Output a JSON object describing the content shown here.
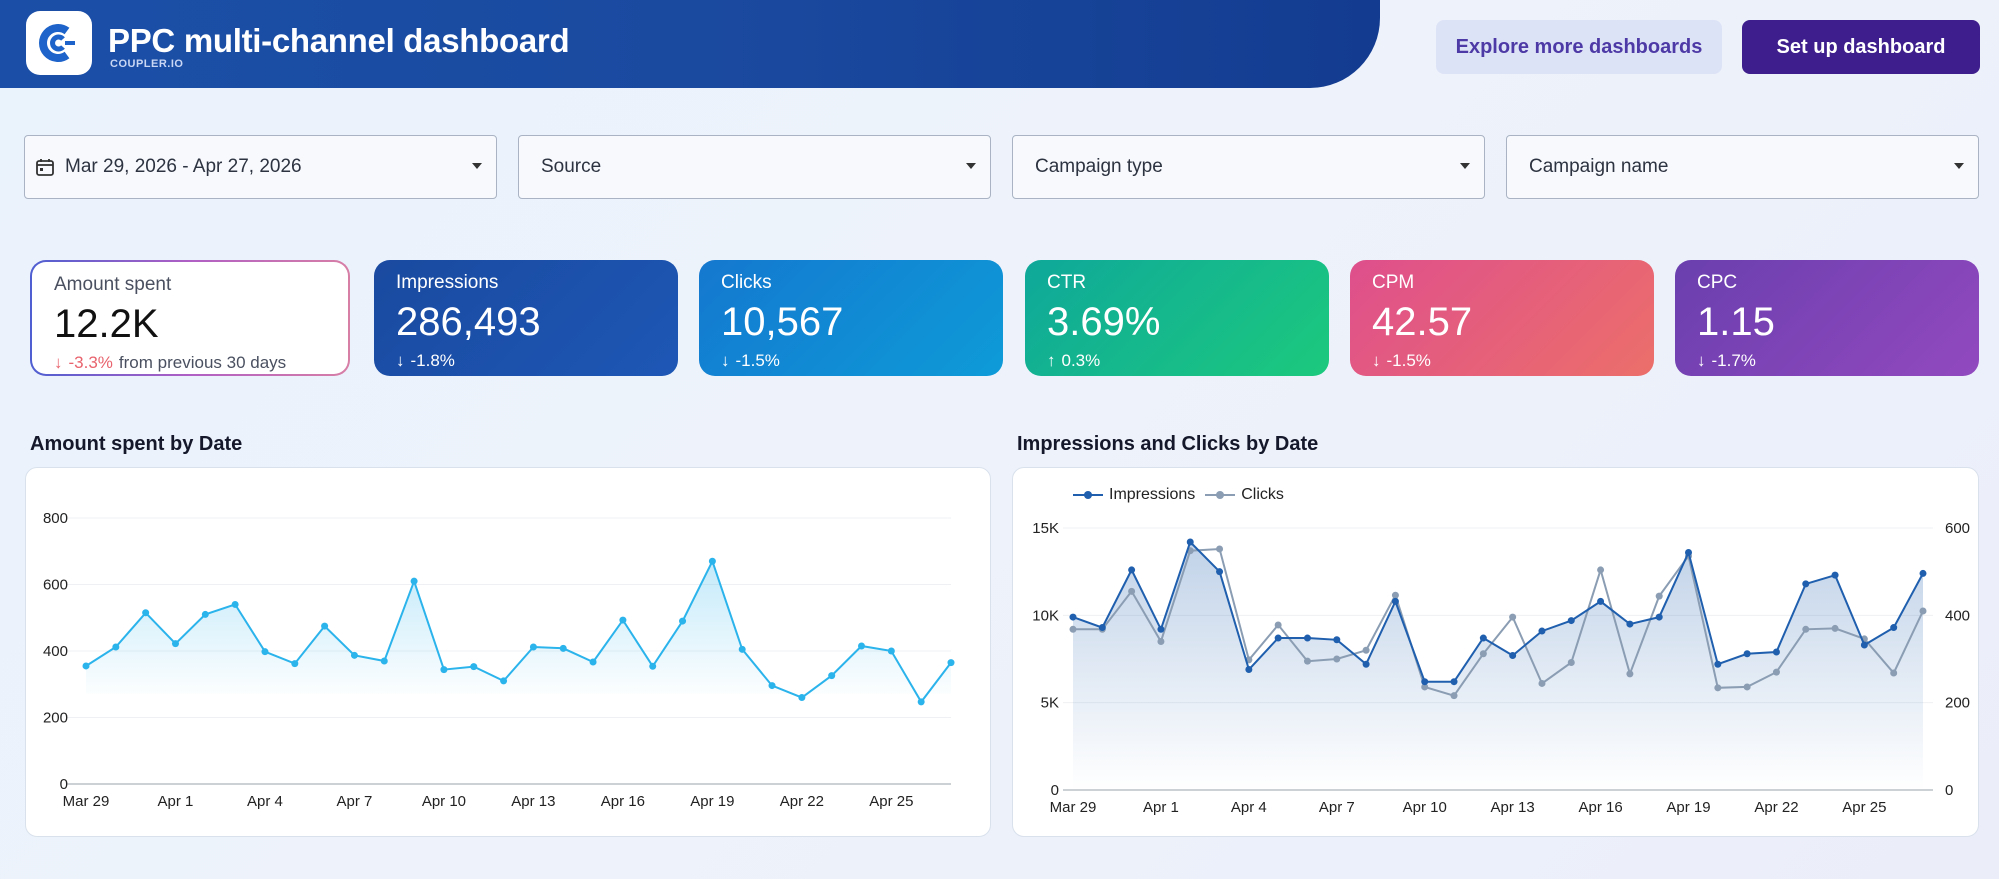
{
  "header": {
    "title": "PPC multi-channel dashboard",
    "subtitle": "COUPLER.IO",
    "explore_button": "Explore more dashboards",
    "setup_button": "Set up dashboard",
    "brand_color": "#1b4fa7"
  },
  "filters": {
    "date_range": "Mar 29, 2026 - Apr 27, 2026",
    "source": "Source",
    "campaign_type": "Campaign type",
    "campaign_name": "Campaign name"
  },
  "kpis": {
    "amount_spent": {
      "label": "Amount spent",
      "value": "12.2K",
      "delta": "-3.3%",
      "comparison": "from previous 30 days",
      "direction": "down"
    },
    "impressions": {
      "label": "Impressions",
      "value": "286,493",
      "delta": "-1.8%",
      "direction": "down"
    },
    "clicks": {
      "label": "Clicks",
      "value": "10,567",
      "delta": "-1.5%",
      "direction": "down"
    },
    "ctr": {
      "label": "CTR",
      "value": "3.69%",
      "delta": "0.3%",
      "direction": "up"
    },
    "cpm": {
      "label": "CPM",
      "value": "42.57",
      "delta": "-1.5%",
      "direction": "down"
    },
    "cpc": {
      "label": "CPC",
      "value": "1.15",
      "delta": "-1.7%",
      "direction": "down"
    }
  },
  "chart_titles": {
    "spent": "Amount spent by Date",
    "imp_clicks": "Impressions and Clicks by Date"
  },
  "chart_data": [
    {
      "type": "area",
      "title": "Amount spent by Date",
      "x_tick_labels": [
        "Mar 29",
        "Apr 1",
        "Apr 4",
        "Apr 7",
        "Apr 10",
        "Apr 13",
        "Apr 16",
        "Apr 19",
        "Apr 22",
        "Apr 25"
      ],
      "ylim": [
        0,
        800
      ],
      "y_ticks": [
        0,
        200,
        400,
        600,
        800
      ],
      "series": [
        {
          "values": [
            355,
            412,
            515,
            422,
            510,
            540,
            398,
            362,
            475,
            387,
            370,
            610,
            344,
            353,
            310,
            412,
            408,
            367,
            493,
            354,
            490,
            670,
            405,
            296,
            260,
            326,
            415,
            400,
            247,
            365
          ],
          "color": "#2bb3ec"
        }
      ]
    },
    {
      "type": "line",
      "title": "Impressions and Clicks by Date",
      "x_tick_labels": [
        "Mar 29",
        "Apr 1",
        "Apr 4",
        "Apr 7",
        "Apr 10",
        "Apr 13",
        "Apr 16",
        "Apr 19",
        "Apr 22",
        "Apr 25"
      ],
      "ylim_left": [
        0,
        15000
      ],
      "y_ticks_left": [
        "0",
        "5K",
        "10K",
        "15K"
      ],
      "ylim_right": [
        0,
        600
      ],
      "y_ticks_right": [
        0,
        200,
        400,
        600
      ],
      "legend_position": "top-left",
      "series": [
        {
          "name": "Impressions",
          "axis": "left",
          "color": "#1f5fae",
          "values": [
            9900,
            9300,
            12600,
            9200,
            14200,
            12500,
            6900,
            8700,
            8700,
            8600,
            7200,
            10800,
            6200,
            6200,
            8700,
            7700,
            9100,
            9700,
            10800,
            9500,
            9900,
            13600,
            7200,
            7800,
            7900,
            11800,
            12300,
            8300,
            9300,
            12400
          ]
        },
        {
          "name": "Clicks",
          "axis": "right",
          "color": "#8a9db3",
          "values": [
            368,
            368,
            455,
            340,
            548,
            552,
            298,
            378,
            295,
            300,
            320,
            446,
            236,
            216,
            312,
            396,
            244,
            292,
            504,
            266,
            444,
            536,
            234,
            236,
            270,
            368,
            370,
            346,
            268,
            410
          ]
        }
      ]
    }
  ]
}
